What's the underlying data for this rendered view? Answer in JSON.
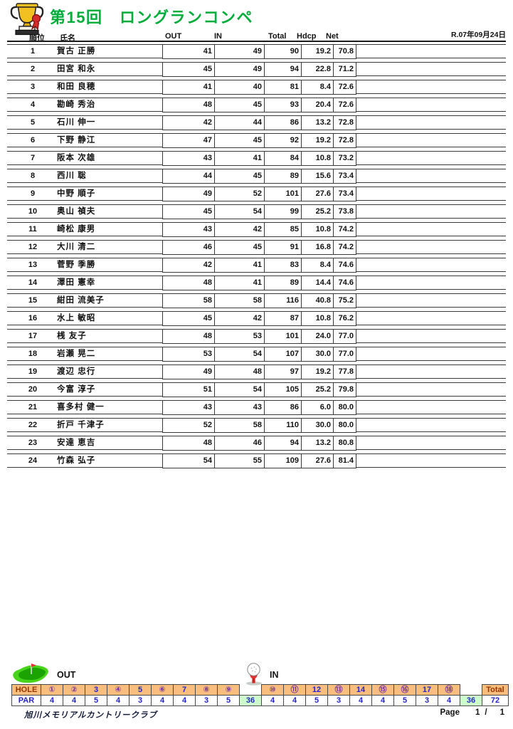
{
  "page": {
    "title": "第15回　ロングランコンペ",
    "date": "R.07年09月24日"
  },
  "columns": {
    "rank": "順位",
    "name": "氏名",
    "out": "OUT",
    "in": "IN",
    "total": "Total",
    "hdcp": "Hdcp",
    "net": "Net"
  },
  "results": [
    {
      "rank": 1,
      "name": "賀古 正勝",
      "out": "41",
      "in": "49",
      "total": "90",
      "hdcp": "19.2",
      "net": "70.8"
    },
    {
      "rank": 2,
      "name": "田宮 和永",
      "out": "45",
      "in": "49",
      "total": "94",
      "hdcp": "22.8",
      "net": "71.2"
    },
    {
      "rank": 3,
      "name": "和田 良穂",
      "out": "41",
      "in": "40",
      "total": "81",
      "hdcp": "8.4",
      "net": "72.6"
    },
    {
      "rank": 4,
      "name": "勘崎 秀治",
      "out": "48",
      "in": "45",
      "total": "93",
      "hdcp": "20.4",
      "net": "72.6"
    },
    {
      "rank": 5,
      "name": "石川 伸一",
      "out": "42",
      "in": "44",
      "total": "86",
      "hdcp": "13.2",
      "net": "72.8"
    },
    {
      "rank": 6,
      "name": "下野 静江",
      "out": "47",
      "in": "45",
      "total": "92",
      "hdcp": "19.2",
      "net": "72.8"
    },
    {
      "rank": 7,
      "name": "阪本 次雄",
      "out": "43",
      "in": "41",
      "total": "84",
      "hdcp": "10.8",
      "net": "73.2"
    },
    {
      "rank": 8,
      "name": "西川 聡",
      "out": "44",
      "in": "45",
      "total": "89",
      "hdcp": "15.6",
      "net": "73.4"
    },
    {
      "rank": 9,
      "name": "中野 順子",
      "out": "49",
      "in": "52",
      "total": "101",
      "hdcp": "27.6",
      "net": "73.4"
    },
    {
      "rank": 10,
      "name": "奥山 禎夫",
      "out": "45",
      "in": "54",
      "total": "99",
      "hdcp": "25.2",
      "net": "73.8"
    },
    {
      "rank": 11,
      "name": "崎松 康男",
      "out": "43",
      "in": "42",
      "total": "85",
      "hdcp": "10.8",
      "net": "74.2"
    },
    {
      "rank": 12,
      "name": "大川 清二",
      "out": "46",
      "in": "45",
      "total": "91",
      "hdcp": "16.8",
      "net": "74.2"
    },
    {
      "rank": 13,
      "name": "菅野 季勝",
      "out": "42",
      "in": "41",
      "total": "83",
      "hdcp": "8.4",
      "net": "74.6"
    },
    {
      "rank": 14,
      "name": "澤田 憲幸",
      "out": "48",
      "in": "41",
      "total": "89",
      "hdcp": "14.4",
      "net": "74.6"
    },
    {
      "rank": 15,
      "name": "紺田 流美子",
      "out": "58",
      "in": "58",
      "total": "116",
      "hdcp": "40.8",
      "net": "75.2"
    },
    {
      "rank": 16,
      "name": "水上 敏昭",
      "out": "45",
      "in": "42",
      "total": "87",
      "hdcp": "10.8",
      "net": "76.2"
    },
    {
      "rank": 17,
      "name": "桟 友子",
      "out": "48",
      "in": "53",
      "total": "101",
      "hdcp": "24.0",
      "net": "77.0"
    },
    {
      "rank": 18,
      "name": "岩瀬 晃二",
      "out": "53",
      "in": "54",
      "total": "107",
      "hdcp": "30.0",
      "net": "77.0"
    },
    {
      "rank": 19,
      "name": "渡辺 忠行",
      "out": "49",
      "in": "48",
      "total": "97",
      "hdcp": "19.2",
      "net": "77.8"
    },
    {
      "rank": 20,
      "name": "今富 淳子",
      "out": "51",
      "in": "54",
      "total": "105",
      "hdcp": "25.2",
      "net": "79.8"
    },
    {
      "rank": 21,
      "name": "喜多村 健一",
      "out": "43",
      "in": "43",
      "total": "86",
      "hdcp": "6.0",
      "net": "80.0"
    },
    {
      "rank": 22,
      "name": "折戸 千津子",
      "out": "52",
      "in": "58",
      "total": "110",
      "hdcp": "30.0",
      "net": "80.0"
    },
    {
      "rank": 23,
      "name": "安達 恵吉",
      "out": "48",
      "in": "46",
      "total": "94",
      "hdcp": "13.2",
      "net": "80.8"
    },
    {
      "rank": 24,
      "name": "竹森 弘子",
      "out": "54",
      "in": "55",
      "total": "109",
      "hdcp": "27.6",
      "net": "81.4"
    }
  ],
  "course": {
    "out_label": "OUT",
    "in_label": "IN",
    "hole_label": "HOLE",
    "par_label": "PAR",
    "total_label": "Total",
    "out_holes": [
      "①",
      "②",
      "3",
      "④",
      "5",
      "⑥",
      "7",
      "⑧",
      "⑨"
    ],
    "in_holes": [
      "⑩",
      "⑪",
      "12",
      "⑬",
      "14",
      "⑮",
      "⑯",
      "17",
      "⑱"
    ],
    "out_pars": [
      "4",
      "4",
      "5",
      "4",
      "3",
      "4",
      "4",
      "3",
      "5"
    ],
    "in_pars": [
      "4",
      "4",
      "5",
      "3",
      "4",
      "4",
      "5",
      "3",
      "4"
    ],
    "out_par_total": "36",
    "in_par_total": "36",
    "course_par_total": "72"
  },
  "footer": {
    "club": "旭川メモリアルカントリークラブ",
    "page_label": "Page",
    "page_current": "1",
    "page_separator": "/",
    "page_total": "1"
  },
  "icons": {
    "trophy": "trophy-icon",
    "green": "golf-green-flag-icon",
    "ball": "golf-ball-tee-icon"
  },
  "colors": {
    "title_green": "#00ac3a",
    "header_orange": "#f9be7e",
    "subtotal_green": "#ccffcc",
    "number_blue": "#2424c8",
    "circled_purple": "#7030a0",
    "label_maroon": "#993300"
  }
}
